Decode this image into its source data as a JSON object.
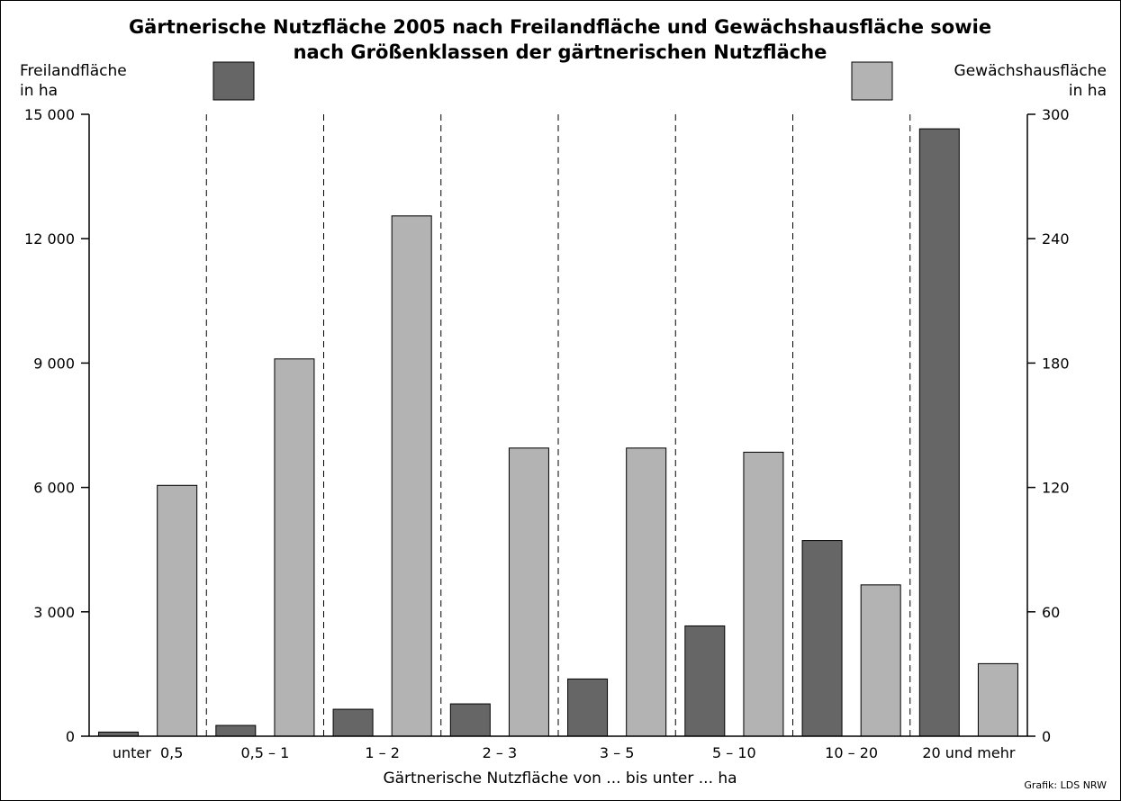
{
  "chart_data": {
    "type": "bar",
    "title_line1": "Gärtnerische Nutzfläche 2005 nach Freilandfläche und Gewächshausfläche sowie",
    "title_line2": "nach Größenklassen der gärtnerischen Nutzfläche",
    "xlabel": "Gärtnerische Nutzfläche von ... bis unter ... ha",
    "left_axis": {
      "label_line1": "Freilandfläche",
      "label_line2": "in ha",
      "ylim": [
        0,
        15000
      ],
      "ticks": [
        0,
        3000,
        6000,
        9000,
        12000,
        15000
      ],
      "tick_labels": [
        "0",
        "3 000",
        "6 000",
        "9 000",
        "12 000",
        "15 000"
      ]
    },
    "right_axis": {
      "label_line1": "Gewächshausfläche",
      "label_line2": "in ha",
      "ylim": [
        0,
        300
      ],
      "ticks": [
        0,
        60,
        120,
        180,
        240,
        300
      ],
      "tick_labels": [
        "0",
        "60",
        "120",
        "180",
        "240",
        "300"
      ]
    },
    "categories": [
      "unter  0,5",
      "0,5 – 1",
      "1 – 2",
      "2 – 3",
      "3 – 5",
      "5 – 10",
      "10 – 20",
      "20 und mehr"
    ],
    "series": [
      {
        "name": "Freilandfläche",
        "axis": "left",
        "color": "#666666",
        "values": [
          100,
          260,
          650,
          780,
          1380,
          2660,
          4720,
          14650
        ]
      },
      {
        "name": "Gewächshausfläche",
        "axis": "right",
        "color": "#b3b3b3",
        "values": [
          121,
          182,
          251,
          139,
          139,
          137,
          73,
          35
        ]
      }
    ],
    "legend": {
      "left_color": "#666666",
      "right_color": "#b3b3b3"
    },
    "grid": "vertical dashed category separators",
    "credit": "Grafik: LDS NRW"
  }
}
